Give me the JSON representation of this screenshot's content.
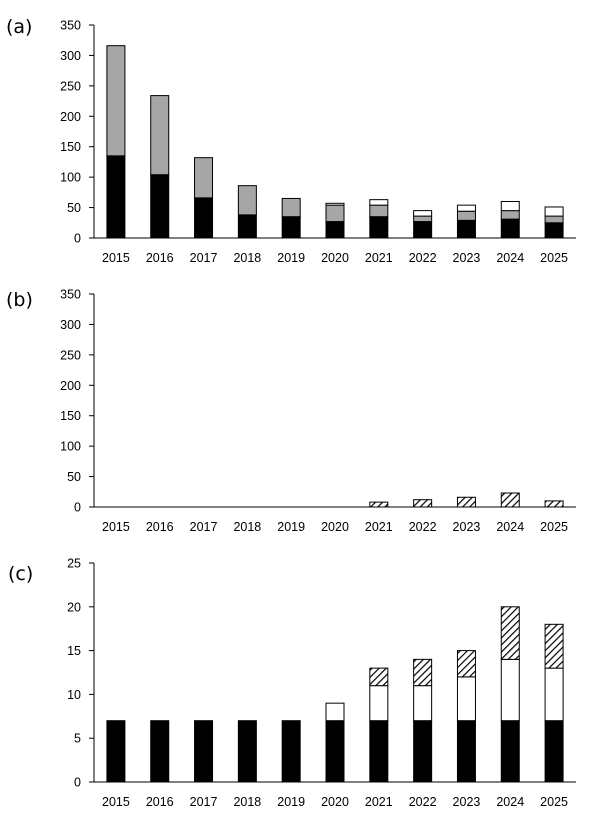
{
  "chart_data": [
    {
      "type": "bar",
      "stacked": true,
      "panel_label": "(a)",
      "title": "",
      "xlabel": "",
      "ylabel": "",
      "categories": [
        "2015",
        "2016",
        "2017",
        "2018",
        "2019",
        "2020",
        "2021",
        "2022",
        "2023",
        "2024",
        "2025"
      ],
      "ylim": [
        0,
        350
      ],
      "yticks": [
        0,
        50,
        100,
        150,
        200,
        250,
        300,
        350
      ],
      "grid": false,
      "series": [
        {
          "fill": "solid",
          "color": "#000000",
          "values": [
            135,
            104,
            66,
            38,
            35,
            27,
            35,
            27,
            29,
            31,
            25
          ]
        },
        {
          "fill": "solid",
          "color": "#a6a6a6",
          "values": [
            181,
            130,
            66,
            48,
            30,
            27,
            19,
            9,
            15,
            14,
            11
          ]
        },
        {
          "fill": "solid",
          "color": "#ffffff",
          "values": [
            0,
            0,
            0,
            0,
            0,
            3,
            9,
            9,
            10,
            15,
            15
          ]
        }
      ]
    },
    {
      "type": "bar",
      "stacked": true,
      "panel_label": "(b)",
      "title": "",
      "xlabel": "",
      "ylabel": "",
      "categories": [
        "2015",
        "2016",
        "2017",
        "2018",
        "2019",
        "2020",
        "2021",
        "2022",
        "2023",
        "2024",
        "2025"
      ],
      "ylim": [
        0,
        350
      ],
      "yticks": [
        0,
        50,
        100,
        150,
        200,
        250,
        300,
        350
      ],
      "grid": false,
      "series": [
        {
          "fill": "hatch",
          "color": "#000000",
          "values": [
            0,
            0,
            0,
            0,
            0,
            0,
            8,
            12,
            16,
            23,
            10
          ]
        }
      ]
    },
    {
      "type": "bar",
      "stacked": true,
      "panel_label": "(c)",
      "title": "",
      "xlabel": "",
      "ylabel": "",
      "categories": [
        "2015",
        "2016",
        "2017",
        "2018",
        "2019",
        "2020",
        "2021",
        "2022",
        "2023",
        "2024",
        "2025"
      ],
      "ylim": [
        0,
        25
      ],
      "yticks": [
        0,
        5,
        10,
        15,
        20,
        25
      ],
      "grid": false,
      "series": [
        {
          "fill": "solid",
          "color": "#000000",
          "values": [
            7,
            7,
            7,
            7,
            7,
            7,
            7,
            7,
            7,
            7,
            7
          ]
        },
        {
          "fill": "solid",
          "color": "#ffffff",
          "values": [
            0,
            0,
            0,
            0,
            0,
            2,
            4,
            4,
            5,
            7,
            6
          ]
        },
        {
          "fill": "hatch",
          "color": "#000000",
          "values": [
            0,
            0,
            0,
            0,
            0,
            0,
            2,
            3,
            3,
            6,
            5
          ]
        }
      ]
    }
  ]
}
